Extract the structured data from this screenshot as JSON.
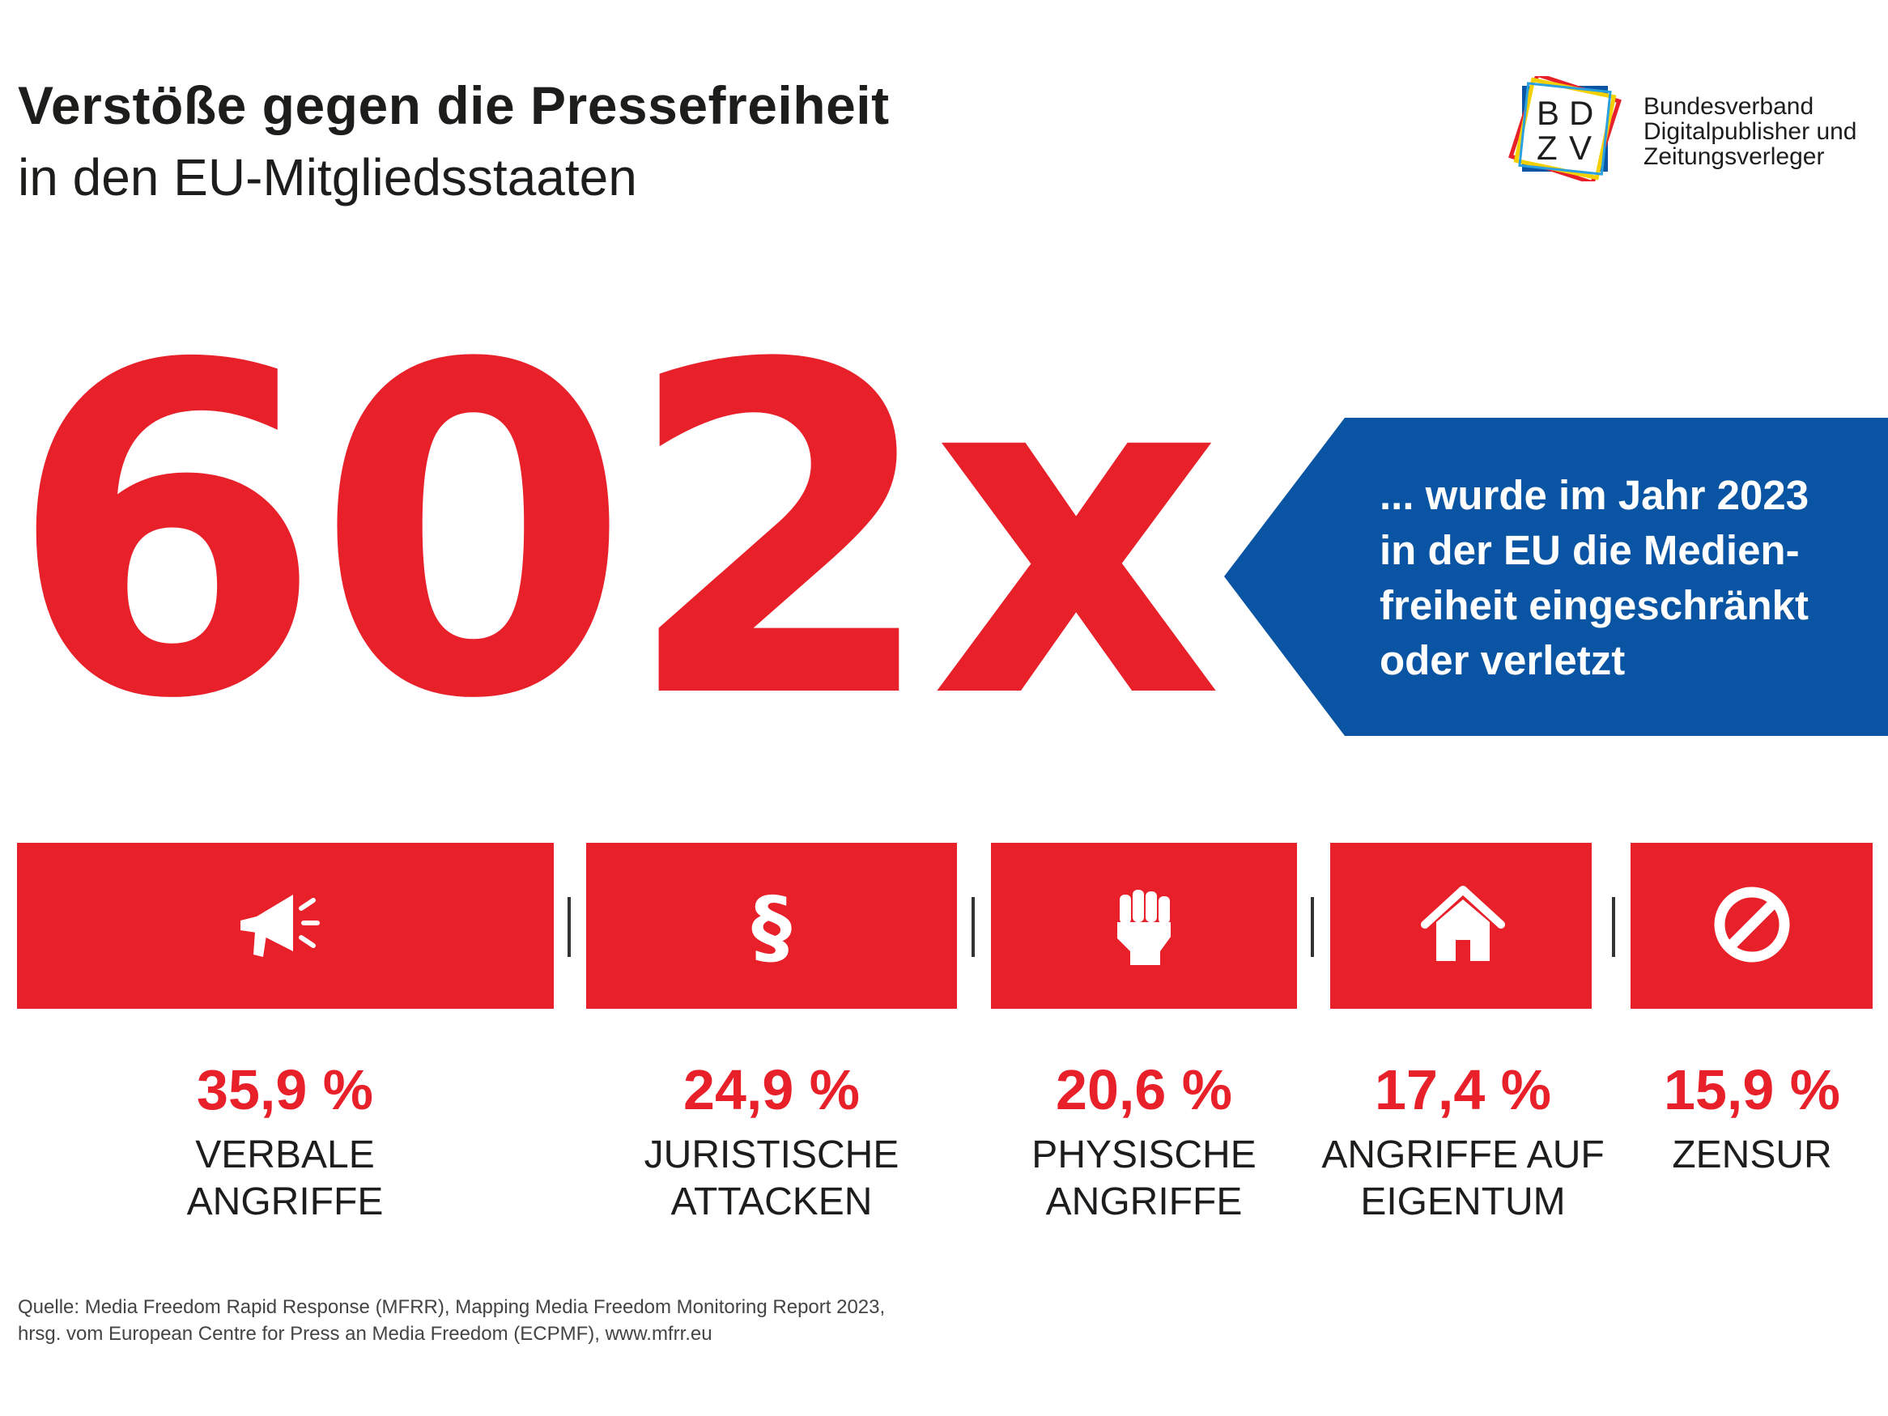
{
  "header": {
    "title": "Verstöße gegen die Pressefreiheit",
    "subtitle": "in den EU-Mitgliedsstaaten"
  },
  "logo": {
    "letters": "BDZV",
    "org_lines": [
      "Bundesverband",
      "Digitalpublisher und",
      "Zeitungsverleger"
    ]
  },
  "headline_number": "602x",
  "banner": {
    "lines": [
      "... wurde im Jahr 2023",
      "in der EU die Medien-",
      "freiheit eingeschränkt",
      "oder verletzt"
    ]
  },
  "colors": {
    "accent_red": "#e8202a",
    "banner_blue": "#0a55a3"
  },
  "categories": [
    {
      "percent": "35,9 %",
      "label_lines": [
        "VERBALE",
        "ANGRIFFE"
      ],
      "icon": "megaphone-icon"
    },
    {
      "percent": "24,9 %",
      "label_lines": [
        "JURISTISCHE",
        "ATTACKEN"
      ],
      "icon": "paragraph-icon"
    },
    {
      "percent": "20,6 %",
      "label_lines": [
        "PHYSISCHE",
        "ANGRIFFE"
      ],
      "icon": "fist-icon"
    },
    {
      "percent": "17,4 %",
      "label_lines": [
        "ANGRIFFE AUF",
        "EIGENTUM"
      ],
      "icon": "house-icon"
    },
    {
      "percent": "15,9 %",
      "label_lines": [
        "ZENSUR"
      ],
      "icon": "prohibited-icon"
    }
  ],
  "source": {
    "lines": [
      "Quelle: Media Freedom Rapid Response (MFRR), Mapping Media Freedom Monitoring Report 2023,",
      "hrsg. vom European Centre for Press an Media Freedom (ECPMF), www.mfrr.eu"
    ]
  }
}
